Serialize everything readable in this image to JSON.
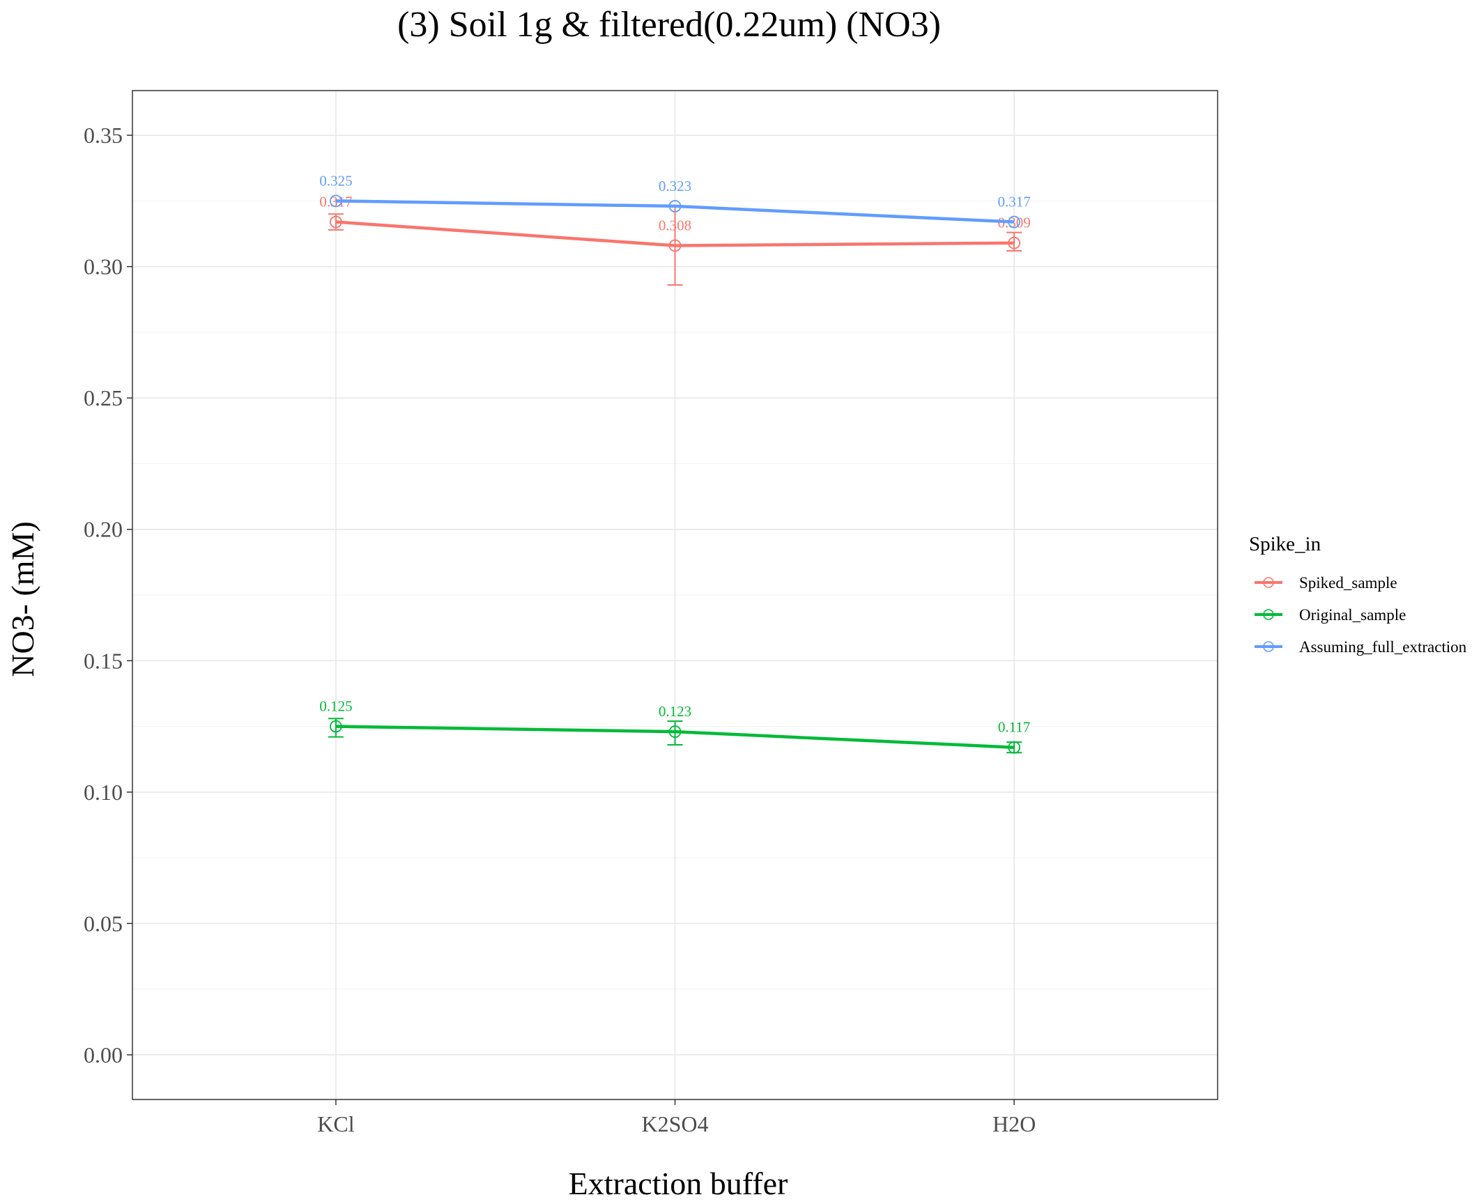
{
  "chart_data": {
    "type": "line",
    "title": "(3) Soil 1g & filtered(0.22um) (NO3)",
    "xlabel": "Extraction buffer",
    "ylabel": "NO3- (mM)",
    "categories": [
      "KCl",
      "K2SO4",
      "H2O"
    ],
    "ylim": [
      -0.017,
      0.367
    ],
    "yticks": [
      0.0,
      0.05,
      0.1,
      0.15,
      0.2,
      0.25,
      0.3,
      0.35
    ],
    "ytick_labels": [
      "0.00",
      "0.05",
      "0.10",
      "0.15",
      "0.20",
      "0.25",
      "0.30",
      "0.35"
    ],
    "grid": true,
    "legend": {
      "title": "Spike_in",
      "position": "right"
    },
    "series": [
      {
        "name": "Spiked_sample",
        "color": "#F8766D",
        "values": [
          0.317,
          0.308,
          0.309
        ],
        "labels": [
          "0.317",
          "0.308",
          "0.309"
        ],
        "error_low": [
          0.314,
          0.293,
          0.306
        ],
        "error_high": [
          0.32,
          0.323,
          0.313
        ]
      },
      {
        "name": "Original_sample",
        "color": "#00BA38",
        "values": [
          0.125,
          0.123,
          0.117
        ],
        "labels": [
          "0.125",
          "0.123",
          "0.117"
        ],
        "error_low": [
          0.121,
          0.118,
          0.115
        ],
        "error_high": [
          0.128,
          0.127,
          0.119
        ]
      },
      {
        "name": "Assuming_full_extraction",
        "color": "#619CFF",
        "values": [
          0.325,
          0.323,
          0.317
        ],
        "labels": [
          "0.325",
          "0.323",
          "0.317"
        ],
        "error_low": [
          null,
          null,
          null
        ],
        "error_high": [
          null,
          null,
          null
        ]
      }
    ]
  }
}
